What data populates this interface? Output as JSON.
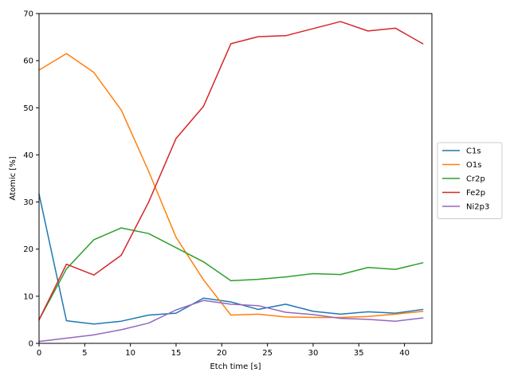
{
  "chart_data": {
    "type": "line",
    "xlabel": "Etch time [s]",
    "ylabel": "Atomic [%]",
    "xlim": [
      0,
      43
    ],
    "ylim": [
      0,
      70
    ],
    "xticks": [
      0,
      5,
      10,
      15,
      20,
      25,
      30,
      35,
      40
    ],
    "yticks": [
      0,
      10,
      20,
      30,
      40,
      50,
      60,
      70
    ],
    "x": [
      0,
      3,
      6,
      9,
      12,
      15,
      18,
      21,
      24,
      27,
      30,
      33,
      36,
      39,
      42
    ],
    "legend_position": "outside-right",
    "grid": false,
    "series": [
      {
        "name": "C1s",
        "color": "#1f77b4",
        "values": [
          31.7,
          4.8,
          4.1,
          4.7,
          6.0,
          6.4,
          9.6,
          8.8,
          7.2,
          8.3,
          6.8,
          6.2,
          6.7,
          6.4,
          7.2
        ]
      },
      {
        "name": "O1s",
        "color": "#ff7f0e",
        "values": [
          58.0,
          61.5,
          57.5,
          49.5,
          36.5,
          22.5,
          13.5,
          6.0,
          6.2,
          5.6,
          5.5,
          5.5,
          5.7,
          6.2,
          6.8
        ]
      },
      {
        "name": "Cr2p",
        "color": "#2ca02c",
        "values": [
          5.0,
          15.8,
          22.0,
          24.5,
          23.3,
          20.3,
          17.3,
          13.3,
          13.6,
          14.1,
          14.8,
          14.6,
          16.1,
          15.7,
          17.1
        ]
      },
      {
        "name": "Fe2p",
        "color": "#d62728",
        "values": [
          5.0,
          16.8,
          14.5,
          18.7,
          30.0,
          43.5,
          50.3,
          63.6,
          65.1,
          65.3,
          66.8,
          68.3,
          66.3,
          66.9,
          63.6
        ]
      },
      {
        "name": "Ni2p3",
        "color": "#9467bd",
        "values": [
          0.4,
          1.1,
          1.8,
          2.9,
          4.3,
          7.1,
          9.1,
          8.3,
          8.0,
          6.6,
          6.1,
          5.3,
          5.1,
          4.7,
          5.4
        ]
      }
    ]
  }
}
